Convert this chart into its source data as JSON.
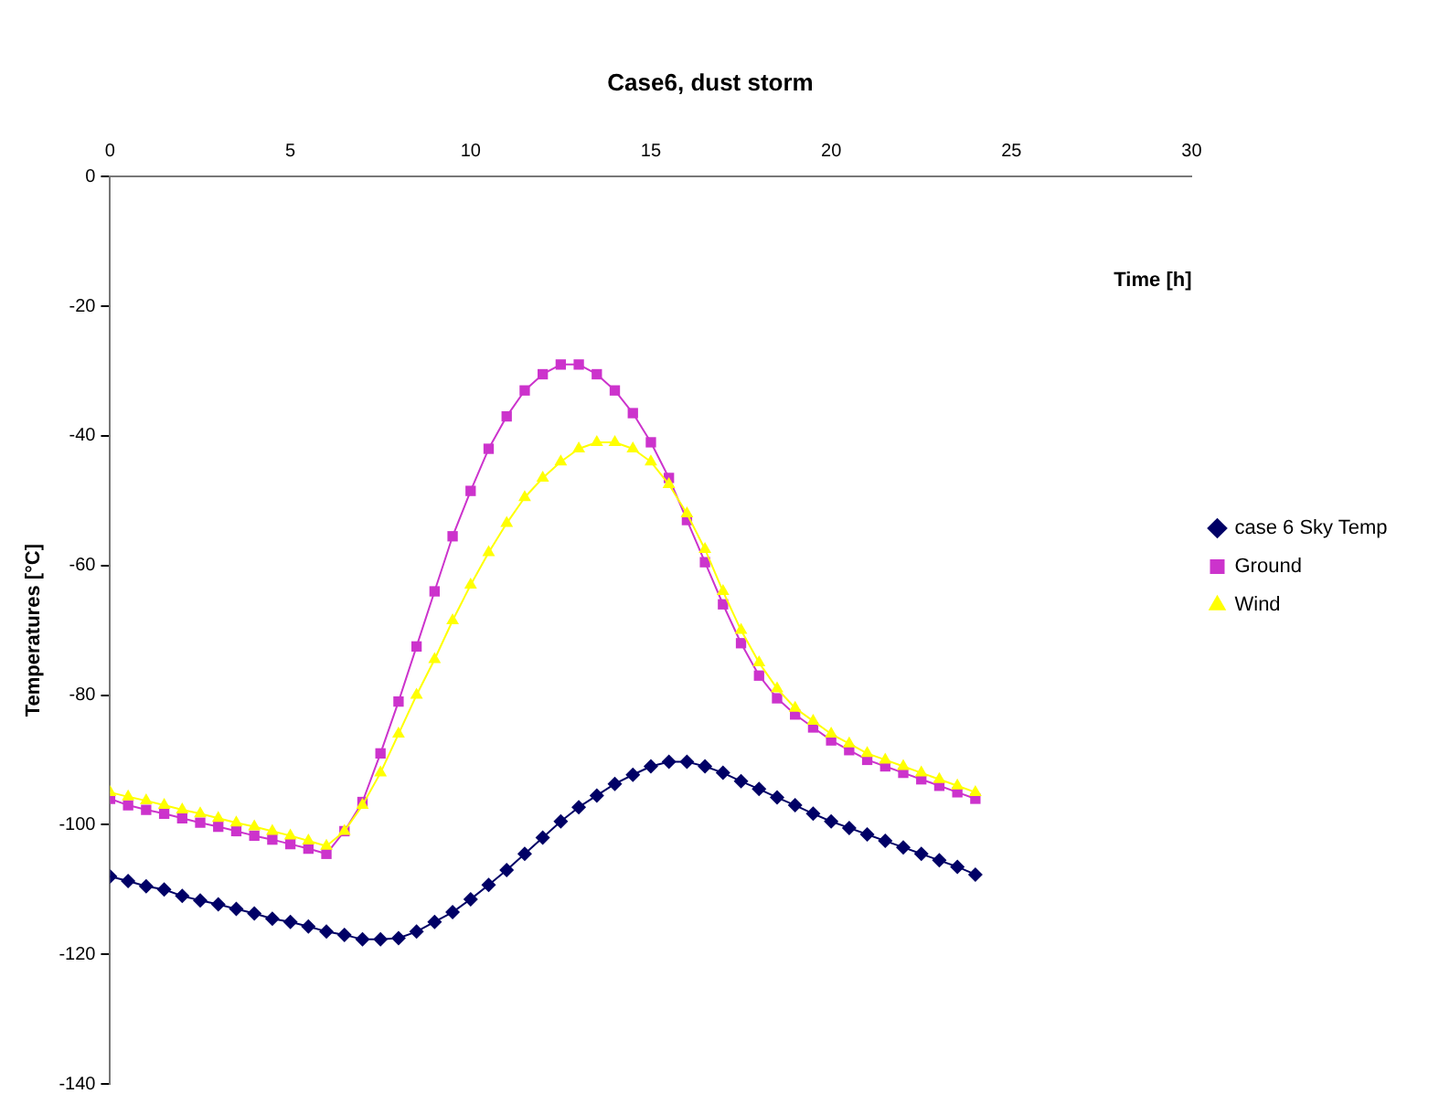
{
  "chart_data": {
    "type": "line",
    "title": "Case6, dust storm",
    "xlabel": "Time [h]",
    "ylabel": "Temperatures [°C]",
    "x": [
      0,
      0.5,
      1,
      1.5,
      2,
      2.5,
      3,
      3.5,
      4,
      4.5,
      5,
      5.5,
      6,
      6.5,
      7,
      7.5,
      8,
      8.5,
      9,
      9.5,
      10,
      10.5,
      11,
      11.5,
      12,
      12.5,
      13,
      13.5,
      14,
      14.5,
      15,
      15.5,
      16,
      16.5,
      17,
      17.5,
      18,
      18.5,
      19,
      19.5,
      20,
      20.5,
      21,
      21.5,
      22,
      22.5,
      23,
      23.5,
      24
    ],
    "series": [
      {
        "name": "case 6 Sky Temp",
        "color": "#000066",
        "marker": "diamond",
        "values": [
          -108,
          -108.7,
          -109.5,
          -110,
          -111,
          -111.7,
          -112.3,
          -113,
          -113.7,
          -114.5,
          -115,
          -115.7,
          -116.5,
          -117,
          -117.7,
          -117.7,
          -117.5,
          -116.5,
          -115,
          -113.5,
          -111.5,
          -109.3,
          -107,
          -104.5,
          -102,
          -99.5,
          -97.3,
          -95.5,
          -93.7,
          -92.3,
          -91,
          -90.3,
          -90.3,
          -91,
          -92,
          -93.3,
          -94.5,
          -95.8,
          -97,
          -98.3,
          -99.5,
          -100.5,
          -101.5,
          -102.5,
          -103.5,
          -104.5,
          -105.5,
          -106.5,
          -107.7
        ]
      },
      {
        "name": "Ground",
        "color": "#cc33cc",
        "marker": "square",
        "values": [
          -96,
          -97,
          -97.7,
          -98.3,
          -99,
          -99.7,
          -100.3,
          -101,
          -101.7,
          -102.3,
          -103,
          -103.7,
          -104.5,
          -101,
          -96.5,
          -89,
          -81,
          -72.5,
          -64,
          -55.5,
          -48.5,
          -42,
          -37,
          -33,
          -30.5,
          -29,
          -29,
          -30.5,
          -33,
          -36.5,
          -41,
          -46.5,
          -53,
          -59.5,
          -66,
          -72,
          -77,
          -80.5,
          -83,
          -85,
          -87,
          -88.5,
          -90,
          -91,
          -92,
          -93,
          -94,
          -95,
          -96
        ]
      },
      {
        "name": "Wind",
        "color": "#ffff00",
        "marker": "triangle",
        "values": [
          -95,
          -95.7,
          -96.3,
          -97,
          -97.7,
          -98.3,
          -99,
          -99.7,
          -100.3,
          -101,
          -101.7,
          -102.5,
          -103.3,
          -101,
          -97,
          -92,
          -86,
          -80,
          -74.5,
          -68.5,
          -63,
          -58,
          -53.5,
          -49.5,
          -46.5,
          -44,
          -42,
          -41,
          -41,
          -42,
          -44,
          -47.5,
          -52,
          -57.5,
          -64,
          -70,
          -75,
          -79,
          -82,
          -84,
          -86,
          -87.5,
          -89,
          -90,
          -91,
          -92,
          -93,
          -94,
          -95
        ]
      }
    ],
    "xlim": [
      0,
      30
    ],
    "xticks": [
      0,
      5,
      10,
      15,
      20,
      25,
      30
    ],
    "ylim": [
      -140,
      0
    ],
    "yticks": [
      -140,
      -120,
      -100,
      -80,
      -60,
      -40,
      -20,
      0
    ],
    "grid": false,
    "legend": "right",
    "line_style": "solid"
  }
}
